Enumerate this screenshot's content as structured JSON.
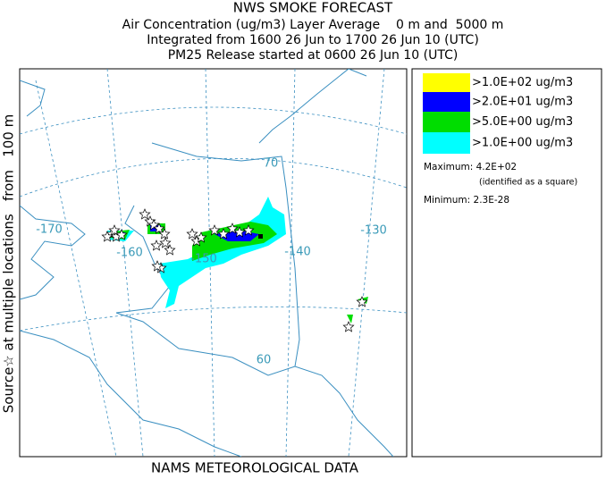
{
  "header": {
    "lines": [
      "NWS SMOKE FORECAST",
      "Air Concentration (ug/m3) Layer Average    0 m and  5000 m",
      "Integrated from 1600 26 Jun to 1700 26 Jun 10 (UTC)",
      "PM25 Release started at 0600 26 Jun 10 (UTC)"
    ]
  },
  "side_label": "Source☆ at multiple locations   from   100 m",
  "footer": "NAMS METEOROLOGICAL DATA",
  "map": {
    "labels": [
      "-170",
      "-160",
      "-150",
      "-140",
      "-130",
      "70",
      "60"
    ]
  },
  "legend": {
    "items": [
      {
        "label": ">1.0E+02 ug/m3",
        "color": "#ffff00"
      },
      {
        "label": ">2.0E+01 ug/m3",
        "color": "#0000ff"
      },
      {
        "label": ">5.0E+00 ug/m3",
        "color": "#00dd00"
      },
      {
        "label": ">1.0E+00 ug/m3",
        "color": "#00ffff"
      }
    ],
    "maximum": "Maximum: 4.2E+02",
    "note": "(identified as a square)",
    "minimum": "Minimum: 2.3E-28"
  }
}
